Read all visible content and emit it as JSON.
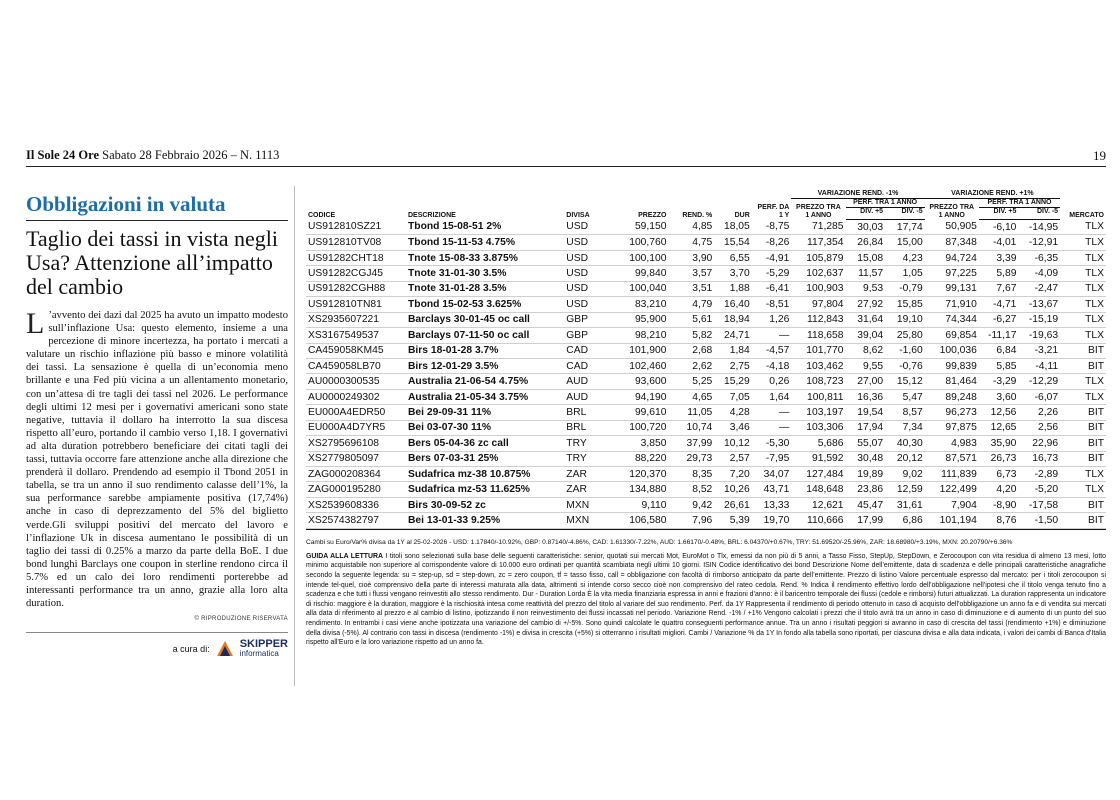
{
  "header": {
    "masthead": "Il Sole 24 Ore",
    "date_issue": "Sabato 28 Febbraio 2026 – N. 1113",
    "page_number": "19"
  },
  "article": {
    "kicker": "Obbligazioni in valuta",
    "headline": "Taglio dei tassi in vista negli Usa? Attenzione all’impatto del cambio",
    "dropcap": "L",
    "body": "’avvento dei dazi dal 2025 ha avuto un impatto modesto sull’inflazione Usa: questo elemento, insieme a una percezione di minore incertezza, ha portato i mercati a valutare un rischio inflazione più basso e minore volatilità dei tassi. La sensazione è quella di un’economia meno brillante e una Fed più vicina a un allentamento monetario, con un’attesa di tre tagli dei tassi nel 2026. Le performance degli ultimi 12 mesi per i governativi americani sono state negative, tuttavia il dollaro ha interrotto la sua discesa rispetto all’euro, portando il cambio verso 1,18. I governativi ad alta duration potrebbero beneficiare dei citati tagli dei tassi, tuttavia occorre fare attenzione anche alla direzione che prenderà il dollaro. Prendendo ad esempio il Tbond 2051 in tabella, se tra un anno il suo rendimento calasse dell’1%, la sua performance sarebbe ampiamente positiva (17,74%) anche in caso di deprezzamento del 5% del biglietto verde.Gli sviluppi positivi del mercato del lavoro e l’inflazione Uk in discesa aumentano le possibilità di un taglio dei tassi di 0.25% a marzo da parte della BoE. I due bond lunghi Barclays one coupon in sterline rendono circa il 5.7% ed un calo dei loro rendimenti porterebbe ad interessanti performance tra un anno, grazie alla loro alta duration.",
    "reproduction": "© RIPRODUZIONE RISERVATA",
    "credit_label": "a cura di:",
    "credit_brand": "SKIPPER",
    "credit_brand_sub": "informatica"
  },
  "table": {
    "headers": {
      "codice": "CODICE",
      "descrizione": "DESCRIZIONE",
      "divisa": "DIVISA",
      "prezzo": "PREZZO",
      "rend": "REND. %",
      "dur": "DUR",
      "perf": "PERF. DA 1 Y",
      "var_minus": "VARIAZIONE REND. -1%",
      "var_plus": "VARIAZIONE REND. +1%",
      "prezzo_1anno": "PREZZO TRA 1 ANNO",
      "perf_1anno": "PERF. TRA 1 ANNO",
      "div_plus5": "DIV. +5",
      "div_minus5": "DIV. -5",
      "mercato": "MERCATO"
    },
    "rows": [
      [
        "US912810SZ21",
        "Tbond 15-08-51 2%",
        "USD",
        "59,150",
        "4,85",
        "18,05",
        "-8,75",
        "71,285",
        "30,03",
        "17,74",
        "50,905",
        "-6,10",
        "-14,95",
        "TLX"
      ],
      [
        "US912810TV08",
        "Tbond 15-11-53 4.75%",
        "USD",
        "100,760",
        "4,75",
        "15,54",
        "-8,26",
        "117,354",
        "26,84",
        "15,00",
        "87,348",
        "-4,01",
        "-12,91",
        "TLX"
      ],
      [
        "US91282CHT18",
        "Tnote 15-08-33 3.875%",
        "USD",
        "100,100",
        "3,90",
        "6,55",
        "-4,91",
        "105,879",
        "15,08",
        "4,23",
        "94,724",
        "3,39",
        "-6,35",
        "TLX"
      ],
      [
        "US91282CGJ45",
        "Tnote 31-01-30 3.5%",
        "USD",
        "99,840",
        "3,57",
        "3,70",
        "-5,29",
        "102,637",
        "11,57",
        "1,05",
        "97,225",
        "5,89",
        "-4,09",
        "TLX"
      ],
      [
        "US91282CGH88",
        "Tnote 31-01-28 3.5%",
        "USD",
        "100,040",
        "3,51",
        "1,88",
        "-6,41",
        "100,903",
        "9,53",
        "-0,79",
        "99,131",
        "7,67",
        "-2,47",
        "TLX"
      ],
      [
        "US912810TN81",
        "Tbond 15-02-53 3.625%",
        "USD",
        "83,210",
        "4,79",
        "16,40",
        "-8,51",
        "97,804",
        "27,92",
        "15,85",
        "71,910",
        "-4,71",
        "-13,67",
        "TLX"
      ],
      [
        "XS2935607221",
        "Barclays 30-01-45 oc call",
        "GBP",
        "95,900",
        "5,61",
        "18,94",
        "1,26",
        "112,843",
        "31,64",
        "19,10",
        "74,344",
        "-6,27",
        "-15,19",
        "TLX"
      ],
      [
        "XS3167549537",
        "Barclays 07-11-50 oc call",
        "GBP",
        "98,210",
        "5,82",
        "24,71",
        "—",
        "118,658",
        "39,04",
        "25,80",
        "69,854",
        "-11,17",
        "-19,63",
        "TLX"
      ],
      [
        "CA459058KM45",
        "Birs 18-01-28 3.7%",
        "CAD",
        "101,900",
        "2,68",
        "1,84",
        "-4,57",
        "101,770",
        "8,62",
        "-1,60",
        "100,036",
        "6,84",
        "-3,21",
        "BIT"
      ],
      [
        "CA459058LB70",
        "Birs 12-01-29 3.5%",
        "CAD",
        "102,460",
        "2,62",
        "2,75",
        "-4,18",
        "103,462",
        "9,55",
        "-0,76",
        "99,839",
        "5,85",
        "-4,11",
        "BIT"
      ],
      [
        "AU0000300535",
        "Australia 21-06-54 4.75%",
        "AUD",
        "93,600",
        "5,25",
        "15,29",
        "0,26",
        "108,723",
        "27,00",
        "15,12",
        "81,464",
        "-3,29",
        "-12,29",
        "TLX"
      ],
      [
        "AU0000249302",
        "Australia 21-05-34 3.75%",
        "AUD",
        "94,190",
        "4,65",
        "7,05",
        "1,64",
        "100,811",
        "16,36",
        "5,47",
        "89,248",
        "3,60",
        "-6,07",
        "TLX"
      ],
      [
        "EU000A4EDR50",
        "Bei 29-09-31 11%",
        "BRL",
        "99,610",
        "11,05",
        "4,28",
        "—",
        "103,197",
        "19,54",
        "8,57",
        "96,273",
        "12,56",
        "2,26",
        "BIT"
      ],
      [
        "EU000A4D7YR5",
        "Bei 03-07-30 11%",
        "BRL",
        "100,720",
        "10,74",
        "3,46",
        "—",
        "103,306",
        "17,94",
        "7,34",
        "97,875",
        "12,65",
        "2,56",
        "BIT"
      ],
      [
        "XS2795696108",
        "Bers 05-04-36 zc call",
        "TRY",
        "3,850",
        "37,99",
        "10,12",
        "-5,30",
        "5,686",
        "55,07",
        "40,30",
        "4,983",
        "35,90",
        "22,96",
        "BIT"
      ],
      [
        "XS2779805097",
        "Bers 07-03-31 25%",
        "TRY",
        "88,220",
        "29,73",
        "2,57",
        "-7,95",
        "91,592",
        "30,48",
        "20,12",
        "87,571",
        "26,73",
        "16,73",
        "BIT"
      ],
      [
        "ZAG000208364",
        "Sudafrica mz-38 10.875%",
        "ZAR",
        "120,370",
        "8,35",
        "7,20",
        "34,07",
        "127,484",
        "19,89",
        "9,02",
        "111,839",
        "6,73",
        "-2,89",
        "TLX"
      ],
      [
        "ZAG000195280",
        "Sudafrica mz-53 11.625%",
        "ZAR",
        "134,880",
        "8,52",
        "10,26",
        "43,71",
        "148,648",
        "23,86",
        "12,59",
        "122,499",
        "4,20",
        "-5,20",
        "TLX"
      ],
      [
        "XS2539608336",
        "Birs 30-09-52 zc",
        "MXN",
        "9,110",
        "9,42",
        "26,61",
        "13,33",
        "12,621",
        "45,47",
        "31,61",
        "7,904",
        "-8,90",
        "-17,58",
        "BIT"
      ],
      [
        "XS2574382797",
        "Bei 13-01-33 9.25%",
        "MXN",
        "106,580",
        "7,96",
        "5,39",
        "19,70",
        "110,666",
        "17,99",
        "6,86",
        "101,194",
        "8,76",
        "-1,50",
        "BIT"
      ]
    ],
    "fx_note": "Cambi su Euro/Var% divisa da 1Y al 25-02-2026 - USD: 1.17840/-10.92%, GBP: 0.87140/-4.86%, CAD: 1.61330/-7.22%, AUD: 1.66170/-0.48%, BRL: 6.04370/+0.67%, TRY: 51.69520/-25.96%, ZAR: 18.68980/+3.19%, MXN: 20.20790/+6.36%",
    "guide_label": "GUIDA ALLA LETTURA",
    "guide_text": "I titoli sono selezionati sulla base delle seguenti caratteristiche: senior, quotati sui mercati Mot, EuroMot o Tlx, emessi da non più di 5 anni, a Tasso Fisso, StepUp, StepDown, e Zerocoupon con vita residua di almeno 13 mesi, lotto minimo acquistabile non superiore al corrispondente valore di 10.000 euro ordinati per quantità scambiata negli ultimi 10 giorni. ISIN Codice identificativo dei bond Descrizione Nome dell’emittente, data di scadenza e delle principali caratteristiche anagrafiche secondo la seguente legenda: su = step-up, sd = step-down, zc = zero coupon, tf = tasso fisso, call = obbligazione con facoltà di rimborso anticipato da parte dell’emittente. Prezzo di listino Valore percentuale espresso dal mercato: per i titoli zerocoupon si intende tel-quel, cioè comprensivo della parte di interessi maturata alla data, altrimenti si intende corso secco cioè non comprensivo del rateo cedola. Rend. % Indica il rendimento effettivo lordo dell’obbligazione nell’ipotesi che il titolo venga tenuto fino a scadenza e che tutti i flussi vengano reinvestiti allo stesso rendimento. Dur - Duration Lorda È la vita media finanziaria espressa in anni e frazioni d’anno: è il baricentro temporale dei flussi (cedole e rimborsi) futuri attualizzati. La duration rappresenta un indicatore di rischio: maggiore è la duration, maggiore è la rischiosità intesa come reattività del prezzo del titolo al variare del suo rendimento. Perf. da 1Y Rappresenta il rendimento di periodo ottenuto in caso di acquisto dell’obbligazione un anno fa e di vendita sui mercati alla data di riferimento al prezzo e al cambio di listino, ipotizzando il non reinvestimento dei flussi incassati nel periodo. Variazione Rend. -1% / +1% Vengono calcolati i prezzi che il titolo avrà tra un anno in caso di diminuzione e di aumento di un punto del suo rendimento. In entrambi i casi viene anche ipotizzata una variazione del cambio di +/-5%. Sono quindi calcolate le quattro conseguenti performance annue. Tra un anno i risultati peggiori si avranno in caso di crescita del tassi (rendimento +1%) e diminuzione della divisa (-5%). Al contrario con tassi in discesa (rendimento -1%) e divisa in crescita (+5%) si otterranno i risultati migliori. Cambi / Variazione % da 1Y In fondo alla tabella sono riportati, per ciascuna divisa e alla data indicata, i valori dei cambi di Banca d’Italia rispetto all’Euro e la loro variazione rispetto ad un anno fa."
  },
  "colors": {
    "kicker_blue": "#1c6ea4",
    "brand_navy": "#1a2b5c",
    "brand_orange": "#e87722"
  }
}
